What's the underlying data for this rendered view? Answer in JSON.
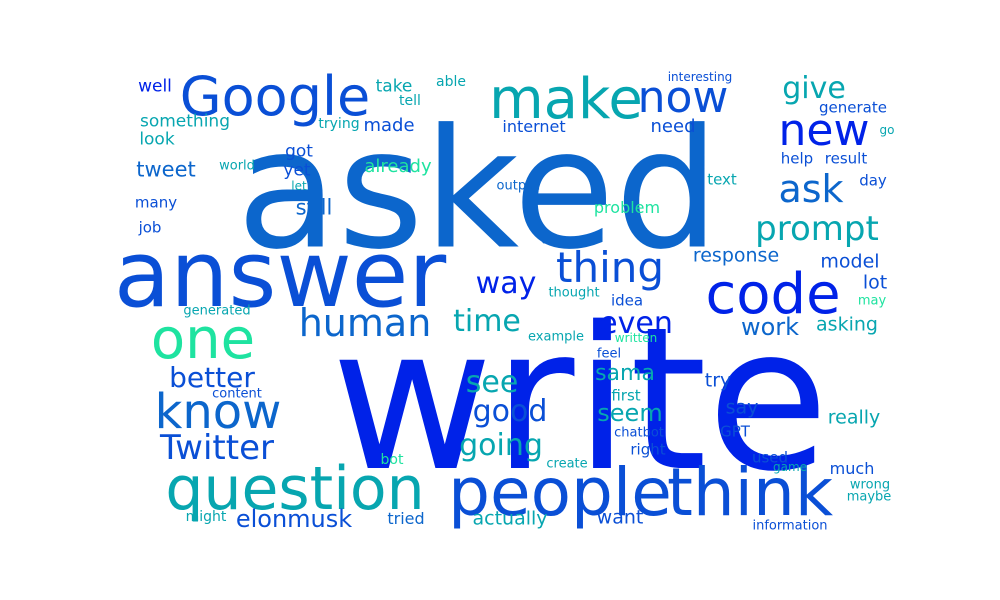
{
  "palette": {
    "deep_blue": "#0022e8",
    "mid_blue": "#0a4fd6",
    "azure": "#0c66cc",
    "teal": "#07a6b0",
    "mint": "#1ee3a0"
  },
  "words": [
    {
      "text": "write",
      "color": "#0022e8"
    },
    {
      "text": "asked",
      "color": "#0c66cc"
    },
    {
      "text": "answer",
      "color": "#0a4fd6"
    },
    {
      "text": "people",
      "color": "#0a4fd6"
    },
    {
      "text": "think",
      "color": "#0a4fd6"
    },
    {
      "text": "question",
      "color": "#07a6b0"
    },
    {
      "text": "Google",
      "color": "#0a4fd6"
    },
    {
      "text": "make",
      "color": "#07a6b0"
    },
    {
      "text": "code",
      "color": "#0022e8"
    },
    {
      "text": "one",
      "color": "#1ee3a0"
    },
    {
      "text": "know",
      "color": "#0c66cc"
    },
    {
      "text": "new",
      "color": "#0022e8"
    },
    {
      "text": "now",
      "color": "#0a4fd6"
    },
    {
      "text": "thing",
      "color": "#0a4fd6"
    },
    {
      "text": "human",
      "color": "#0c66cc"
    },
    {
      "text": "ask",
      "color": "#0c66cc"
    },
    {
      "text": "Twitter",
      "color": "#0a4fd6"
    },
    {
      "text": "prompt",
      "color": "#07a6b0"
    },
    {
      "text": "way",
      "color": "#0022e8"
    },
    {
      "text": "give",
      "color": "#07a6b0"
    },
    {
      "text": "even",
      "color": "#0022e8"
    },
    {
      "text": "time",
      "color": "#07a6b0"
    },
    {
      "text": "good",
      "color": "#0a4fd6"
    },
    {
      "text": "see",
      "color": "#07a6b0"
    },
    {
      "text": "going",
      "color": "#07a6b0"
    },
    {
      "text": "better",
      "color": "#0a4fd6"
    },
    {
      "text": "elonmusk",
      "color": "#0a4fd6"
    },
    {
      "text": "seem",
      "color": "#07a6b0"
    },
    {
      "text": "work",
      "color": "#0c66cc"
    },
    {
      "text": "sama",
      "color": "#07a6b0"
    },
    {
      "text": "tweet",
      "color": "#0c66cc"
    },
    {
      "text": "still",
      "color": "#0c66cc"
    },
    {
      "text": "response",
      "color": "#0c66cc"
    },
    {
      "text": "model",
      "color": "#0a4fd6"
    },
    {
      "text": "lot",
      "color": "#0a4fd6"
    },
    {
      "text": "asking",
      "color": "#07a6b0"
    },
    {
      "text": "really",
      "color": "#07a6b0"
    },
    {
      "text": "try",
      "color": "#0a4fd6"
    },
    {
      "text": "say",
      "color": "#0a4fd6"
    },
    {
      "text": "actually",
      "color": "#07a6b0"
    },
    {
      "text": "want",
      "color": "#0a4fd6"
    },
    {
      "text": "made",
      "color": "#0a4fd6"
    },
    {
      "text": "need",
      "color": "#0a4fd6"
    },
    {
      "text": "got",
      "color": "#0a4fd6"
    },
    {
      "text": "yet",
      "color": "#0a4fd6"
    },
    {
      "text": "already",
      "color": "#1ee3a0"
    },
    {
      "text": "look",
      "color": "#07a6b0"
    },
    {
      "text": "something",
      "color": "#07a6b0"
    },
    {
      "text": "well",
      "color": "#0022e8"
    },
    {
      "text": "take",
      "color": "#07a6b0"
    },
    {
      "text": "tell",
      "color": "#07a6b0"
    },
    {
      "text": "able",
      "color": "#07a6b0"
    },
    {
      "text": "trying",
      "color": "#07a6b0"
    },
    {
      "text": "internet",
      "color": "#0a4fd6"
    },
    {
      "text": "interesting",
      "color": "#0a4fd6"
    },
    {
      "text": "generate",
      "color": "#0a4fd6"
    },
    {
      "text": "go",
      "color": "#07a6b0"
    },
    {
      "text": "help",
      "color": "#0a4fd6"
    },
    {
      "text": "result",
      "color": "#0a4fd6"
    },
    {
      "text": "world",
      "color": "#07a6b0"
    },
    {
      "text": "let",
      "color": "#07a6b0"
    },
    {
      "text": "text",
      "color": "#07a6b0"
    },
    {
      "text": "day",
      "color": "#0a4fd6"
    },
    {
      "text": "output",
      "color": "#0c66cc"
    },
    {
      "text": "many",
      "color": "#0a4fd6"
    },
    {
      "text": "problem",
      "color": "#1ee3a0"
    },
    {
      "text": "job",
      "color": "#0a4fd6"
    },
    {
      "text": "u",
      "color": "#0c66cc"
    },
    {
      "text": "thought",
      "color": "#07a6b0"
    },
    {
      "text": "idea",
      "color": "#0a4fd6"
    },
    {
      "text": "may",
      "color": "#1ee3a0"
    },
    {
      "text": "generated",
      "color": "#07a6b0"
    },
    {
      "text": "example",
      "color": "#07a6b0"
    },
    {
      "text": "written",
      "color": "#1ee3a0"
    },
    {
      "text": "feel",
      "color": "#0a4fd6"
    },
    {
      "text": "content",
      "color": "#0a4fd6"
    },
    {
      "text": "first",
      "color": "#07a6b0"
    },
    {
      "text": "chatbot",
      "color": "#0a4fd6"
    },
    {
      "text": "GPT",
      "color": "#0a4fd6"
    },
    {
      "text": "right",
      "color": "#0a4fd6"
    },
    {
      "text": "bot",
      "color": "#1ee3a0"
    },
    {
      "text": "create",
      "color": "#07a6b0"
    },
    {
      "text": "used",
      "color": "#0a4fd6"
    },
    {
      "text": "game",
      "color": "#07a6b0"
    },
    {
      "text": "much",
      "color": "#0a4fd6"
    },
    {
      "text": "wrong",
      "color": "#07a6b0"
    },
    {
      "text": "maybe",
      "color": "#07a6b0"
    },
    {
      "text": "might",
      "color": "#07a6b0"
    },
    {
      "text": "tried",
      "color": "#0c66cc"
    },
    {
      "text": "information",
      "color": "#0a4fd6"
    }
  ]
}
